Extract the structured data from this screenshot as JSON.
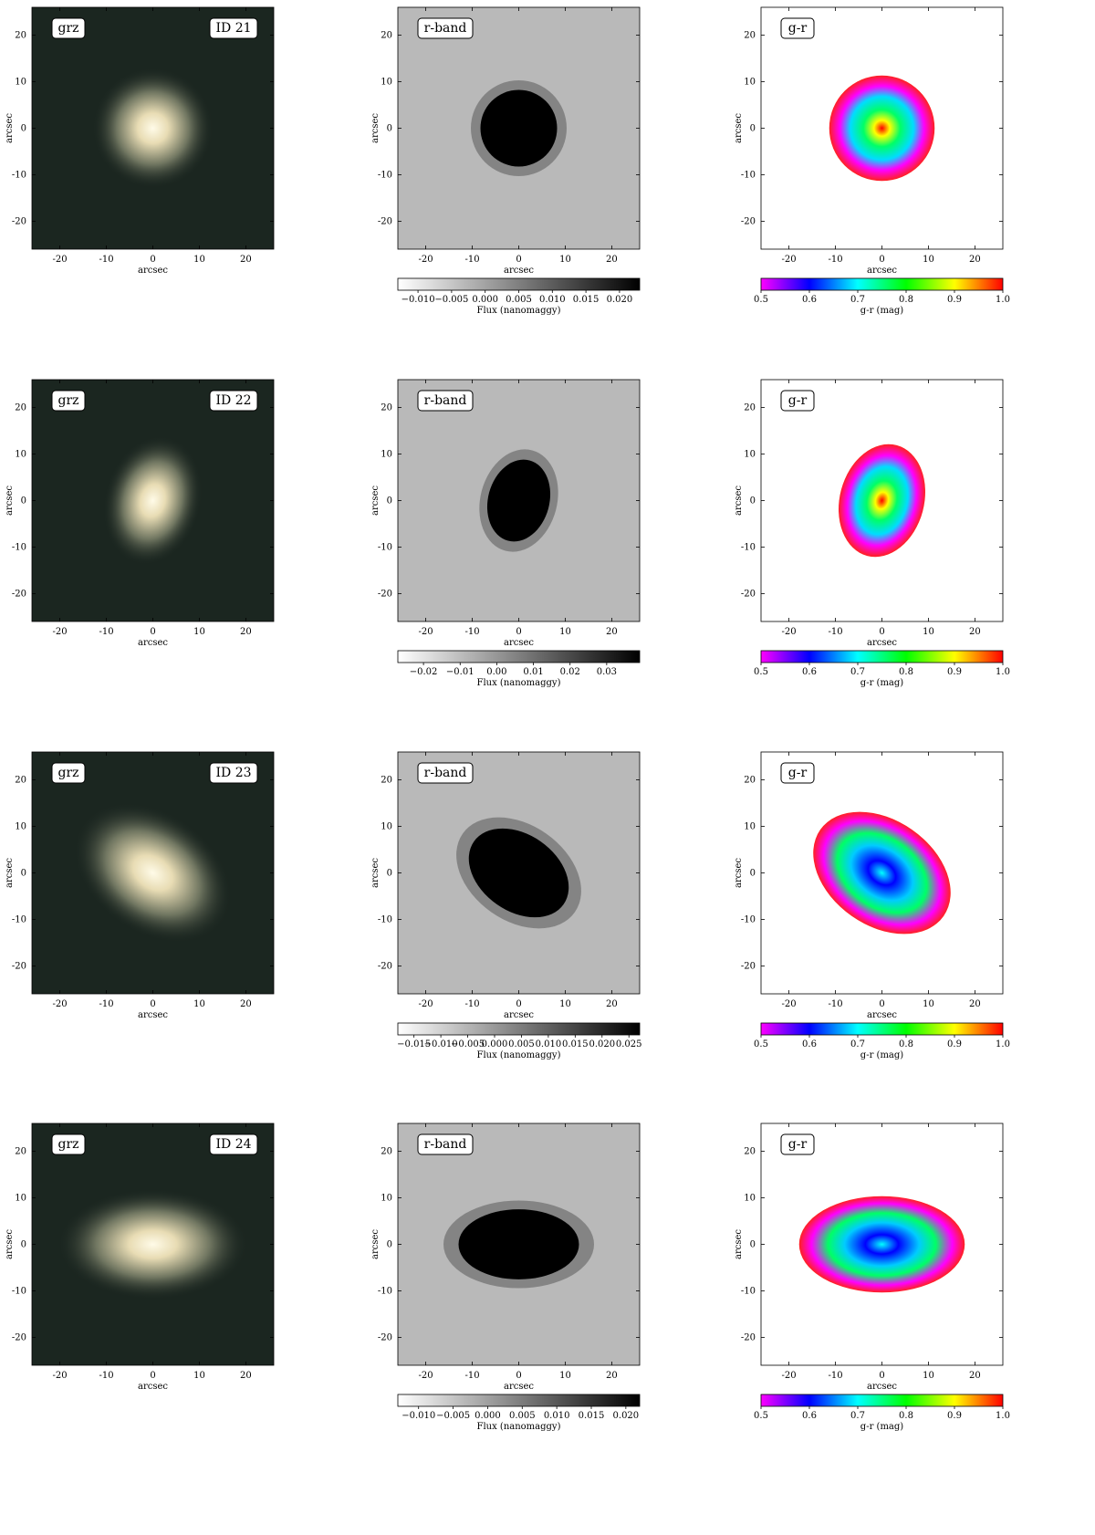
{
  "labels": {
    "grz": "grz",
    "rband": "r-band",
    "gr": "g-r",
    "axis": "arcsec",
    "flux_unit": "Flux (nanomaggy)",
    "color_unit": "g-r (mag)"
  },
  "axis_ticks": [
    -20,
    -10,
    0,
    10,
    20
  ],
  "color_ticks": [
    0.5,
    0.6,
    0.7,
    0.8,
    0.9,
    1.0
  ],
  "rows": [
    {
      "id": "ID 21",
      "flux_ticks": [
        -0.01,
        -0.005,
        0.0,
        0.005,
        0.01,
        0.015,
        0.02
      ],
      "flux_range": [
        -0.013,
        0.023
      ]
    },
    {
      "id": "ID 22",
      "flux_ticks": [
        -0.02,
        -0.01,
        0.0,
        0.01,
        0.02,
        0.03
      ],
      "flux_range": [
        -0.027,
        0.039
      ]
    },
    {
      "id": "ID 23",
      "flux_ticks": [
        -0.015,
        -0.01,
        -0.005,
        0.0,
        0.005,
        0.01,
        0.015,
        0.02,
        0.025
      ],
      "flux_range": [
        -0.018,
        0.027
      ]
    },
    {
      "id": "ID 24",
      "flux_ticks": [
        -0.01,
        -0.005,
        0.0,
        0.005,
        0.01,
        0.015,
        0.02
      ],
      "flux_range": [
        -0.013,
        0.022
      ]
    }
  ],
  "chart_data": {
    "type": "heatmap",
    "panels_per_row": [
      "grz",
      "r-band",
      "g-r"
    ],
    "xlabel": "arcsec",
    "ylabel": "arcsec",
    "xlim": [
      -26,
      26
    ],
    "ylim": [
      -26,
      26
    ],
    "colorbar_flux_label": "Flux (nanomaggy)",
    "colorbar_color_label": "g-r (mag)",
    "colorbar_color_range": [
      0.5,
      1.0
    ]
  }
}
